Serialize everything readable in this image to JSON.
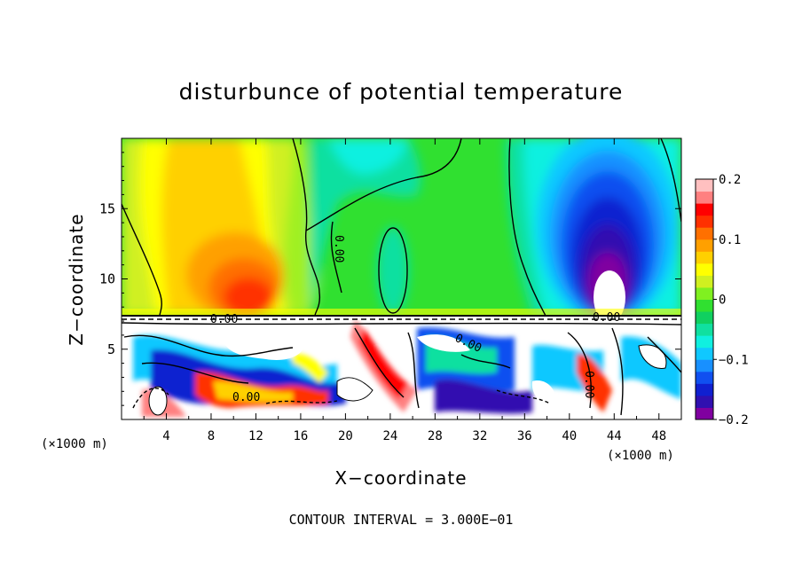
{
  "chart_data": {
    "type": "heatmap",
    "title": "disturbunce of potential temperature",
    "xlabel": "X−coordinate",
    "ylabel": "Z−coordinate",
    "x_unit": "(×1000 m)",
    "z_unit": "(×1000 m)",
    "footer": "CONTOUR INTERVAL = 3.000E−01",
    "xlim": [
      0,
      50
    ],
    "ylim": [
      0,
      20
    ],
    "x_ticks": [
      "4",
      "8",
      "12",
      "16",
      "20",
      "24",
      "28",
      "32",
      "36",
      "40",
      "44",
      "48"
    ],
    "y_ticks": [
      "5",
      "10",
      "15"
    ],
    "colorbar": {
      "range": [
        -0.2,
        0.2
      ],
      "tick_labels": [
        "0.2",
        "0.1",
        "0",
        "−0.1",
        "−0.2"
      ],
      "colors": [
        "#8000a0",
        "#3010b0",
        "#1020d0",
        "#1050f0",
        "#1890ff",
        "#10c8ff",
        "#10f0e0",
        "#10e0a0",
        "#10d060",
        "#30e030",
        "#80f020",
        "#d0f020",
        "#ffff00",
        "#ffd000",
        "#ffa000",
        "#ff7000",
        "#ff3000",
        "#ff0000",
        "#ff8080",
        "#ffc0c0"
      ]
    },
    "contour_labels": [
      "0.00",
      "0.00",
      "0.00",
      "0.00",
      "0.00",
      "0.00"
    ],
    "features": [
      {
        "kind": "warm",
        "value": 0.15,
        "x": 11,
        "z": 10.5
      },
      {
        "kind": "warm",
        "value": 0.08,
        "x": 9,
        "z": 15
      },
      {
        "kind": "cold",
        "value": -0.2,
        "x": 43,
        "z": 11
      },
      {
        "kind": "cold",
        "value": -0.12,
        "x": 42,
        "z": 15.5
      }
    ]
  }
}
